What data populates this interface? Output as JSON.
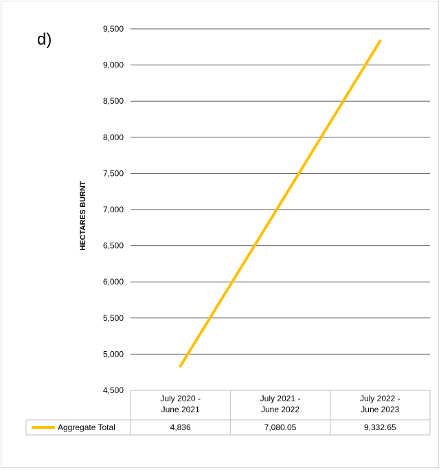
{
  "panel_label": "d)",
  "chart_data": {
    "type": "line",
    "categories": [
      "July 2020 - June 2021",
      "July 2021 - June 2022",
      "July 2022 - June 2023"
    ],
    "category_lines": [
      [
        "July 2020 -",
        "June 2021"
      ],
      [
        "July 2021 -",
        "June 2022"
      ],
      [
        "July 2022 -",
        "June 2023"
      ]
    ],
    "series": [
      {
        "name": "Aggregate Total",
        "values": [
          4836,
          7080.05,
          9332.65
        ],
        "value_labels": [
          "4,836",
          "7,080.05",
          "9,332.65"
        ],
        "color": "#FFC000"
      }
    ],
    "title": "",
    "xlabel": "",
    "ylabel": "HECTARES BURNT",
    "ylim": [
      4500,
      9500
    ],
    "yticks": [
      4500,
      5000,
      5500,
      6000,
      6500,
      7000,
      7500,
      8000,
      8500,
      9000,
      9500
    ],
    "ytick_labels": [
      "4,500",
      "5,000",
      "5,500",
      "6,000",
      "6,500",
      "7,000",
      "7,500",
      "8,000",
      "8,500",
      "9,000",
      "9,500"
    ],
    "grid": true,
    "legend": "data-table",
    "gridline_color": "#595959",
    "table_border_color": "#bfbfbf"
  }
}
